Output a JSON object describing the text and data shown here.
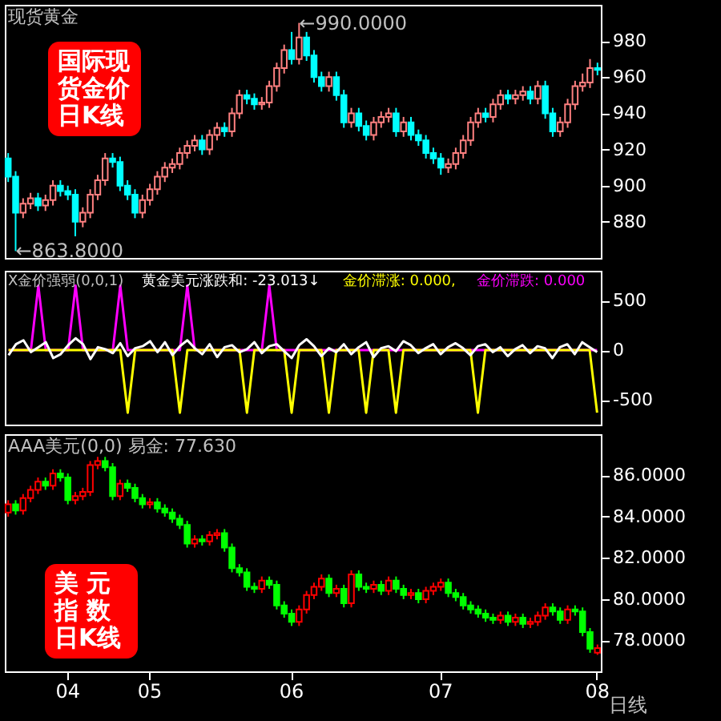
{
  "chart_data": [
    {
      "type": "candlestick",
      "title": "现货黄金",
      "tick_labels": "y",
      "colors": [
        "#00ffff",
        "#00ffff",
        "#ff8080",
        "#ff8080",
        "#00ffff",
        "#ff8080",
        "#ff8080",
        "#00ffff",
        "#00ffff",
        "#00ffff",
        "#ff8080",
        "#ff8080",
        "#ff8080",
        "#ff8080",
        "#00ffff",
        "#00ffff",
        "#00ffff",
        "#00ffff",
        "#ff8080",
        "#ff8080",
        "#ff8080",
        "#ff8080",
        "#ff8080",
        "#ff8080",
        "#ff8080",
        "#ff8080",
        "#00ffff",
        "#ff8080",
        "#ff8080",
        "#00ffff",
        "#ff8080",
        "#ff8080",
        "#00ffff",
        "#00ffff",
        "#ff8080",
        "#ff8080",
        "#ff8080",
        "#ff8080",
        "#00ffff",
        "#ff8080",
        "#00ffff",
        "#00ffff",
        "#00ffff",
        "#ff8080",
        "#00ffff",
        "#00ffff",
        "#ff8080",
        "#00ffff",
        "#00ffff",
        "#ff8080",
        "#ff8080",
        "#ff8080",
        "#00ffff",
        "#ff8080",
        "#00ffff",
        "#00ffff",
        "#00ffff",
        "#00ffff",
        "#00ffff",
        "#ff8080",
        "#ff8080",
        "#ff8080",
        "#ff8080",
        "#ff8080",
        "#00ffff",
        "#ff8080",
        "#ff8080",
        "#00ffff",
        "#ff8080",
        "#ff8080",
        "#00ffff",
        "#ff8080",
        "#00ffff",
        "#00ffff",
        "#ff8080",
        "#ff8080",
        "#ff8080",
        "#ff8080",
        "#ff8080",
        "#00ffff"
      ],
      "ylim": [
        860,
        1000
      ],
      "yticks": [
        880,
        900,
        920,
        940,
        960,
        980
      ],
      "annotations": [
        "国际现货金价日K线",
        "←990.0000",
        "←863.8000"
      ],
      "categories": [
        null,
        null,
        null,
        null,
        null,
        null,
        null,
        null,
        "04",
        null,
        null,
        null,
        null,
        null,
        null,
        null,
        null,
        null,
        null,
        "05",
        null,
        null,
        null,
        null,
        null,
        null,
        null,
        null,
        null,
        null,
        null,
        null,
        null,
        null,
        null,
        null,
        null,
        null,
        "06",
        null,
        null,
        null,
        null,
        null,
        null,
        null,
        null,
        null,
        null,
        null,
        null,
        null,
        null,
        null,
        null,
        null,
        null,
        null,
        "07",
        null,
        null,
        null,
        null,
        null,
        null,
        null,
        null,
        null,
        null,
        null,
        null,
        null,
        null,
        null,
        null,
        null,
        null,
        null,
        null,
        "08"
      ],
      "ohlc": [
        [
          915,
          918,
          902,
          905
        ],
        [
          905,
          908,
          863.8,
          885
        ],
        [
          885,
          893,
          882,
          890
        ],
        [
          890,
          896,
          887,
          893
        ],
        [
          893,
          896,
          886,
          889
        ],
        [
          889,
          895,
          886,
          892
        ],
        [
          892,
          903,
          889,
          900
        ],
        [
          900,
          903,
          894,
          897
        ],
        [
          897,
          900,
          892,
          895
        ],
        [
          895,
          898,
          872,
          880
        ],
        [
          880,
          888,
          877,
          885
        ],
        [
          885,
          898,
          882,
          895
        ],
        [
          895,
          906,
          892,
          903
        ],
        [
          903,
          918,
          900,
          915
        ],
        [
          915,
          918,
          910,
          913
        ],
        [
          913,
          916,
          897,
          900
        ],
        [
          900,
          903,
          892,
          895
        ],
        [
          895,
          898,
          882,
          885
        ],
        [
          885,
          895,
          882,
          892
        ],
        [
          892,
          901,
          889,
          898
        ],
        [
          898,
          908,
          895,
          905
        ],
        [
          905,
          913,
          902,
          910
        ],
        [
          910,
          915,
          907,
          912
        ],
        [
          912,
          921,
          909,
          918
        ],
        [
          918,
          925,
          915,
          922
        ],
        [
          922,
          928,
          919,
          925
        ],
        [
          925,
          928,
          917,
          920
        ],
        [
          920,
          931,
          917,
          928
        ],
        [
          928,
          935,
          925,
          932
        ],
        [
          932,
          935,
          927,
          930
        ],
        [
          930,
          943,
          927,
          940
        ],
        [
          940,
          953,
          937,
          950
        ],
        [
          950,
          953,
          945,
          948
        ],
        [
          948,
          951,
          942,
          945
        ],
        [
          945,
          949,
          942,
          946
        ],
        [
          946,
          958,
          943,
          955
        ],
        [
          955,
          968,
          952,
          965
        ],
        [
          965,
          978,
          962,
          975
        ],
        [
          975,
          985,
          967,
          970
        ],
        [
          970,
          990,
          967,
          982
        ],
        [
          982,
          985,
          969,
          972
        ],
        [
          972,
          975,
          957,
          960
        ],
        [
          960,
          963,
          952,
          955
        ],
        [
          955,
          963,
          952,
          960
        ],
        [
          960,
          963,
          947,
          950
        ],
        [
          950,
          953,
          932,
          935
        ],
        [
          935,
          943,
          932,
          940
        ],
        [
          940,
          943,
          930,
          933
        ],
        [
          933,
          936,
          925,
          928
        ],
        [
          928,
          938,
          925,
          935
        ],
        [
          935,
          941,
          932,
          938
        ],
        [
          938,
          943,
          935,
          940
        ],
        [
          940,
          943,
          927,
          930
        ],
        [
          930,
          938,
          927,
          935
        ],
        [
          935,
          938,
          925,
          928
        ],
        [
          928,
          931,
          922,
          925
        ],
        [
          925,
          928,
          915,
          918
        ],
        [
          918,
          921,
          912,
          915
        ],
        [
          915,
          918,
          906,
          910
        ],
        [
          910,
          915,
          907,
          912
        ],
        [
          912,
          921,
          909,
          918
        ],
        [
          918,
          928,
          915,
          925
        ],
        [
          925,
          938,
          922,
          935
        ],
        [
          935,
          943,
          932,
          940
        ],
        [
          940,
          943,
          935,
          938
        ],
        [
          938,
          948,
          935,
          945
        ],
        [
          945,
          953,
          942,
          950
        ],
        [
          950,
          953,
          945,
          948
        ],
        [
          948,
          953,
          945,
          950
        ],
        [
          950,
          955,
          947,
          952
        ],
        [
          952,
          955,
          945,
          948
        ],
        [
          948,
          958,
          945,
          955
        ],
        [
          955,
          958,
          937,
          940
        ],
        [
          940,
          943,
          927,
          930
        ],
        [
          930,
          938,
          927,
          935
        ],
        [
          935,
          948,
          932,
          945
        ],
        [
          945,
          958,
          942,
          955
        ],
        [
          955,
          962,
          952,
          957
        ],
        [
          957,
          970,
          954,
          965
        ],
        [
          965,
          968,
          961,
          964
        ]
      ]
    },
    {
      "type": "line",
      "title": "X金价强弱(0,0,1)",
      "tick_labels": "y",
      "ylim": [
        -750,
        800
      ],
      "yticks": [
        -500,
        0,
        500
      ],
      "categories": [
        null,
        null,
        null,
        null,
        null,
        null,
        null,
        null,
        "04",
        null,
        null,
        null,
        null,
        null,
        null,
        null,
        null,
        null,
        null,
        "05",
        null,
        null,
        null,
        null,
        null,
        null,
        null,
        null,
        null,
        null,
        null,
        null,
        null,
        null,
        null,
        null,
        null,
        null,
        "06",
        null,
        null,
        null,
        null,
        null,
        null,
        null,
        null,
        null,
        null,
        null,
        null,
        null,
        null,
        null,
        null,
        null,
        null,
        null,
        "07",
        null,
        null,
        null,
        null,
        null,
        null,
        null,
        null,
        null,
        null,
        null,
        null,
        null,
        null,
        null,
        null,
        null,
        null,
        null,
        null,
        "08"
      ],
      "series": [
        {
          "name": "黄金美元涨跌和: -23.013↓",
          "color": "#ffffff",
          "values": [
            -50,
            60,
            100,
            -20,
            30,
            80,
            -80,
            -40,
            50,
            120,
            60,
            -90,
            30,
            10,
            -30,
            70,
            -60,
            20,
            40,
            90,
            -20,
            80,
            -50,
            40,
            100,
            20,
            -40,
            60,
            -70,
            30,
            50,
            -20,
            10,
            80,
            -30,
            40,
            60,
            -10,
            -80,
            50,
            110,
            40,
            -60,
            20,
            -20,
            60,
            -40,
            30,
            80,
            -70,
            20,
            40,
            -10,
            90,
            50,
            -30,
            20,
            60,
            -40,
            30,
            70,
            20,
            -50,
            40,
            60,
            -20,
            30,
            -60,
            10,
            50,
            -30,
            40,
            20,
            -80,
            30,
            60,
            -40,
            80,
            30,
            -20
          ]
        },
        {
          "name": "金价滞涨: 0.000,",
          "color": "#ffff00",
          "values": [
            0,
            0,
            0,
            0,
            0,
            0,
            0,
            0,
            0,
            0,
            0,
            0,
            0,
            0,
            0,
            0,
            -630,
            0,
            0,
            0,
            0,
            0,
            0,
            -630,
            0,
            0,
            0,
            0,
            0,
            0,
            0,
            0,
            -630,
            0,
            0,
            0,
            0,
            0,
            -630,
            0,
            0,
            0,
            0,
            -630,
            0,
            0,
            0,
            0,
            -630,
            0,
            0,
            0,
            -630,
            0,
            0,
            0,
            0,
            0,
            0,
            0,
            0,
            0,
            0,
            -630,
            0,
            0,
            0,
            0,
            0,
            0,
            0,
            0,
            0,
            0,
            0,
            0,
            0,
            0,
            0,
            -630
          ]
        },
        {
          "name": "金价滞跌: 0.000",
          "color": "#ff00ff",
          "values": [
            0,
            0,
            0,
            0,
            650,
            0,
            0,
            0,
            0,
            650,
            0,
            0,
            0,
            0,
            0,
            650,
            0,
            0,
            0,
            0,
            0,
            0,
            0,
            0,
            650,
            0,
            0,
            0,
            0,
            0,
            0,
            0,
            0,
            0,
            0,
            650,
            0,
            0,
            0,
            0,
            0,
            0,
            0,
            0,
            0,
            0,
            0,
            0,
            0,
            0,
            0,
            0,
            0,
            0,
            0,
            0,
            0,
            0,
            0,
            0,
            0,
            0,
            0,
            0,
            0,
            0,
            0,
            0,
            0,
            0,
            0,
            0,
            0,
            0,
            0,
            0,
            0,
            0,
            0,
            0
          ]
        }
      ]
    },
    {
      "type": "candlestick",
      "title": "AAA美元(0,0)  易金: 77.630",
      "colors": [
        "#ff0000",
        "#00ff00",
        "#ff0000",
        "#ff0000",
        "#ff0000",
        "#00ff00",
        "#ff0000",
        "#00ff00",
        "#00ff00",
        "#ff0000",
        "#ff0000",
        "#ff0000",
        "#ff0000",
        "#00ff00",
        "#00ff00",
        "#ff0000",
        "#00ff00",
        "#00ff00",
        "#00ff00",
        "#ff0000",
        "#00ff00",
        "#00ff00",
        "#00ff00",
        "#00ff00",
        "#00ff00",
        "#ff0000",
        "#00ff00",
        "#ff0000",
        "#ff0000",
        "#00ff00",
        "#00ff00",
        "#00ff00",
        "#00ff00",
        "#00ff00",
        "#ff0000",
        "#00ff00",
        "#00ff00",
        "#00ff00",
        "#00ff00",
        "#ff0000",
        "#ff0000",
        "#ff0000",
        "#ff0000",
        "#00ff00",
        "#ff0000",
        "#00ff00",
        "#ff0000",
        "#00ff00",
        "#00ff00",
        "#ff0000",
        "#00ff00",
        "#ff0000",
        "#00ff00",
        "#00ff00",
        "#ff0000",
        "#00ff00",
        "#ff0000",
        "#ff0000",
        "#ff0000",
        "#00ff00",
        "#00ff00",
        "#00ff00",
        "#00ff00",
        "#00ff00",
        "#00ff00",
        "#00ff00",
        "#ff0000",
        "#00ff00",
        "#ff0000",
        "#00ff00",
        "#ff0000",
        "#ff0000",
        "#ff0000",
        "#00ff00",
        "#00ff00",
        "#ff0000",
        "#00ff00",
        "#00ff00",
        "#00ff00",
        "#ff0000"
      ],
      "ylim": [
        76.5,
        88
      ],
      "yticks": [
        {
          "value": 78,
          "label": "78.0000"
        },
        {
          "value": 80,
          "label": "80.0000"
        },
        {
          "value": 82,
          "label": "82.0000"
        },
        {
          "value": 84,
          "label": "84.0000"
        },
        {
          "value": 86,
          "label": "86.0000"
        }
      ],
      "annotations": [
        "美 元指 数日K线",
        "日线"
      ],
      "categories": [
        null,
        null,
        null,
        null,
        null,
        null,
        null,
        null,
        "04",
        null,
        null,
        null,
        null,
        null,
        null,
        null,
        null,
        null,
        null,
        "05",
        null,
        null,
        null,
        null,
        null,
        null,
        null,
        null,
        null,
        null,
        null,
        null,
        null,
        null,
        null,
        null,
        null,
        null,
        "06",
        null,
        null,
        null,
        null,
        null,
        null,
        null,
        null,
        null,
        null,
        null,
        null,
        null,
        null,
        null,
        null,
        null,
        null,
        null,
        "07",
        null,
        null,
        null,
        null,
        null,
        null,
        null,
        null,
        null,
        null,
        null,
        null,
        null,
        null,
        null,
        null,
        null,
        null,
        null,
        null,
        "08"
      ],
      "ohlc": [
        [
          84.2,
          84.8,
          84.0,
          84.6
        ],
        [
          84.6,
          84.8,
          84.1,
          84.3
        ],
        [
          84.3,
          85.1,
          84.1,
          84.9
        ],
        [
          84.9,
          85.5,
          84.7,
          85.3
        ],
        [
          85.3,
          85.9,
          85.1,
          85.7
        ],
        [
          85.7,
          85.9,
          85.3,
          85.5
        ],
        [
          85.5,
          86.3,
          85.3,
          86.1
        ],
        [
          86.1,
          86.3,
          85.7,
          85.9
        ],
        [
          85.9,
          86.1,
          84.6,
          84.8
        ],
        [
          84.8,
          85.2,
          84.6,
          85.0
        ],
        [
          85.0,
          85.4,
          84.8,
          85.2
        ],
        [
          85.2,
          86.7,
          85.0,
          86.5
        ],
        [
          86.5,
          86.9,
          86.3,
          86.7
        ],
        [
          86.7,
          86.9,
          86.2,
          86.4
        ],
        [
          86.4,
          86.6,
          84.8,
          85.0
        ],
        [
          85.0,
          85.8,
          84.8,
          85.6
        ],
        [
          85.6,
          85.8,
          85.2,
          85.4
        ],
        [
          85.4,
          85.6,
          84.7,
          84.9
        ],
        [
          84.9,
          85.1,
          84.4,
          84.6
        ],
        [
          84.6,
          84.9,
          84.4,
          84.7
        ],
        [
          84.7,
          84.9,
          84.2,
          84.4
        ],
        [
          84.4,
          84.6,
          84.0,
          84.2
        ],
        [
          84.2,
          84.4,
          83.7,
          83.9
        ],
        [
          83.9,
          84.1,
          83.4,
          83.6
        ],
        [
          83.6,
          83.8,
          82.5,
          82.7
        ],
        [
          82.7,
          83.1,
          82.5,
          82.9
        ],
        [
          82.9,
          83.1,
          82.6,
          82.8
        ],
        [
          82.8,
          83.3,
          82.6,
          83.1
        ],
        [
          83.1,
          83.4,
          82.9,
          83.2
        ],
        [
          83.2,
          83.4,
          82.3,
          82.5
        ],
        [
          82.5,
          82.7,
          81.3,
          81.5
        ],
        [
          81.5,
          81.7,
          81.1,
          81.3
        ],
        [
          81.3,
          81.5,
          80.4,
          80.6
        ],
        [
          80.6,
          80.8,
          80.3,
          80.5
        ],
        [
          80.5,
          81.1,
          80.3,
          80.9
        ],
        [
          80.9,
          81.1,
          80.5,
          80.7
        ],
        [
          80.7,
          80.9,
          79.5,
          79.7
        ],
        [
          79.7,
          79.9,
          79.1,
          79.3
        ],
        [
          79.3,
          79.5,
          78.7,
          78.9
        ],
        [
          78.9,
          79.7,
          78.7,
          79.5
        ],
        [
          79.5,
          80.4,
          79.3,
          80.2
        ],
        [
          80.2,
          80.8,
          80.0,
          80.6
        ],
        [
          80.6,
          81.2,
          80.4,
          81.0
        ],
        [
          81.0,
          81.2,
          80.1,
          80.3
        ],
        [
          80.3,
          80.7,
          80.1,
          80.5
        ],
        [
          80.5,
          80.7,
          79.6,
          79.8
        ],
        [
          79.8,
          81.4,
          79.6,
          81.2
        ],
        [
          81.2,
          81.4,
          80.4,
          80.6
        ],
        [
          80.6,
          80.8,
          80.3,
          80.5
        ],
        [
          80.5,
          80.9,
          80.3,
          80.7
        ],
        [
          80.7,
          80.9,
          80.2,
          80.4
        ],
        [
          80.4,
          81.1,
          80.2,
          80.9
        ],
        [
          80.9,
          81.1,
          80.3,
          80.5
        ],
        [
          80.5,
          80.7,
          80.0,
          80.2
        ],
        [
          80.2,
          80.5,
          80.0,
          80.3
        ],
        [
          80.3,
          80.5,
          79.8,
          80.0
        ],
        [
          80.0,
          80.6,
          79.8,
          80.4
        ],
        [
          80.4,
          80.8,
          80.2,
          80.6
        ],
        [
          80.6,
          81.0,
          80.4,
          80.8
        ],
        [
          80.8,
          81.0,
          80.1,
          80.3
        ],
        [
          80.3,
          80.5,
          79.9,
          80.1
        ],
        [
          80.1,
          80.3,
          79.5,
          79.7
        ],
        [
          79.7,
          79.9,
          79.3,
          79.5
        ],
        [
          79.5,
          79.7,
          79.1,
          79.3
        ],
        [
          79.3,
          79.5,
          78.9,
          79.1
        ],
        [
          79.1,
          79.3,
          78.8,
          79.0
        ],
        [
          79.0,
          79.4,
          78.8,
          79.2
        ],
        [
          79.2,
          79.4,
          78.7,
          78.9
        ],
        [
          78.9,
          79.3,
          78.7,
          79.1
        ],
        [
          79.1,
          79.3,
          78.6,
          78.8
        ],
        [
          78.8,
          79.1,
          78.6,
          78.9
        ],
        [
          78.9,
          79.4,
          78.7,
          79.2
        ],
        [
          79.2,
          79.8,
          79.0,
          79.6
        ],
        [
          79.6,
          79.8,
          79.2,
          79.4
        ],
        [
          79.4,
          79.6,
          78.8,
          79.0
        ],
        [
          79.0,
          79.7,
          78.8,
          79.5
        ],
        [
          79.5,
          79.7,
          79.2,
          79.4
        ],
        [
          79.4,
          79.6,
          78.2,
          78.4
        ],
        [
          78.4,
          78.6,
          77.4,
          77.6
        ],
        [
          77.4,
          77.8,
          77.3,
          77.63
        ]
      ]
    }
  ]
}
